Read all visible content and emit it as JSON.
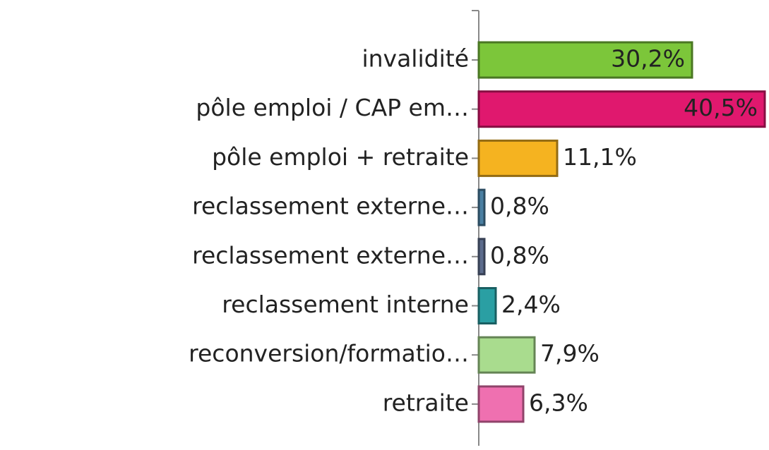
{
  "chart_data": {
    "type": "bar",
    "orientation": "horizontal",
    "categories": [
      "invalidité",
      "pôle emploi / CAP em…",
      "pôle emploi + retraite",
      "reclassement externe…",
      "reclassement externe…",
      "reclassement interne",
      "reconversion/formatio…",
      "retraite"
    ],
    "values": [
      30.2,
      40.5,
      11.1,
      0.8,
      0.8,
      2.4,
      7.9,
      6.3
    ],
    "value_labels": [
      "30,2%",
      "40,5%",
      "11,1%",
      "0,8%",
      "0,8%",
      "2,4%",
      "7,9%",
      "6,3%"
    ],
    "colors": [
      "#7cc63a",
      "#e0186e",
      "#f5b320",
      "#4a7fa2",
      "#5b6b8c",
      "#2a9fa3",
      "#a9dc8e",
      "#ef70b0"
    ]
  }
}
